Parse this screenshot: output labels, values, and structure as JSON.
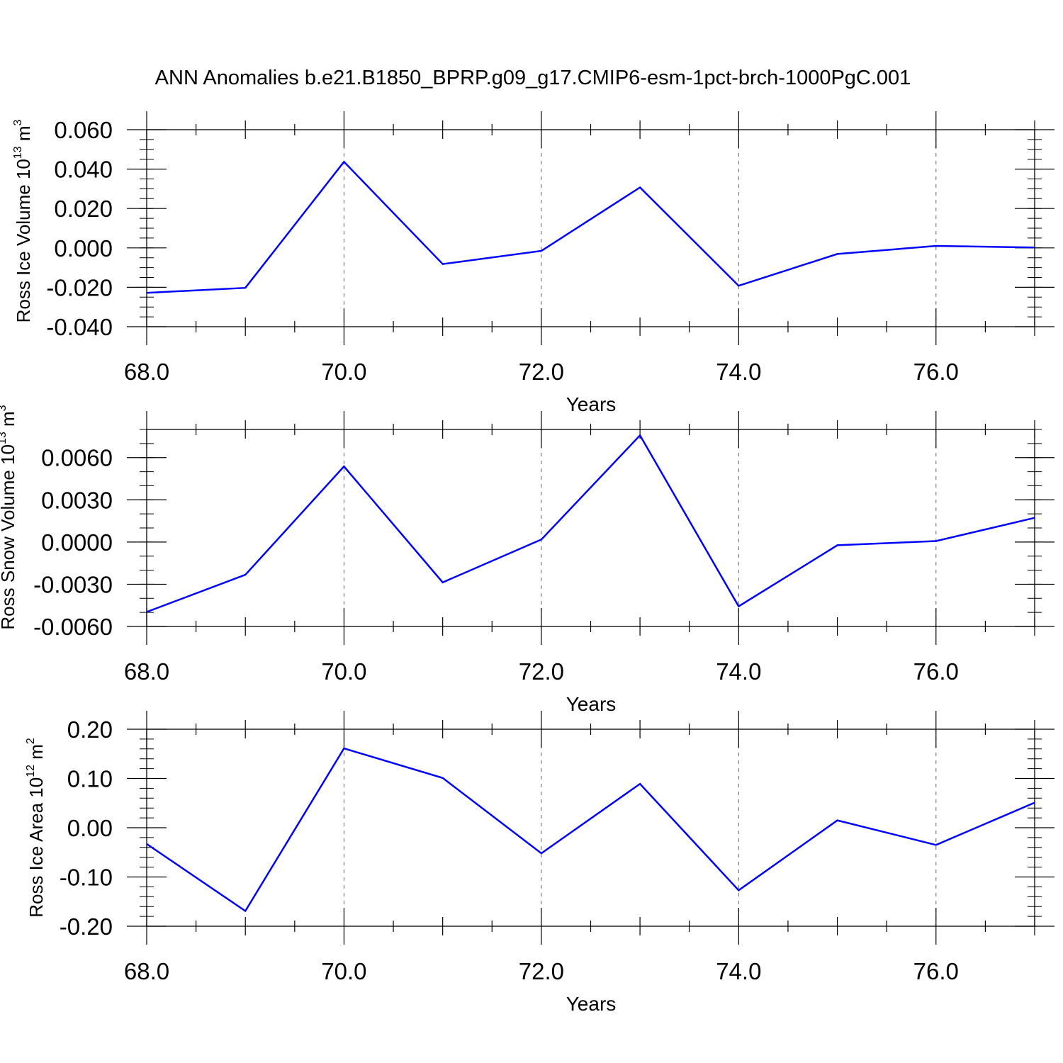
{
  "title": "ANN Anomalies b.e21.B1850_BPRP.g09_g17.CMIP6-esm-1pct-brch-1000PgC.001",
  "colors": {
    "line": "#0000ff",
    "axis": "#000000",
    "grid": "#666666"
  },
  "chart_data": [
    {
      "type": "line",
      "ylabel_main": "Ross Ice Volume 10",
      "ylabel_exp": "13",
      "ylabel_unit": " m",
      "ylabel_unit_exp": "3",
      "xlabel": "Years",
      "xlim": [
        68,
        77
      ],
      "ylim": [
        -0.04,
        0.06
      ],
      "xticks": [
        68,
        70,
        72,
        74,
        76
      ],
      "xtick_labels": [
        "68.0",
        "70.0",
        "72.0",
        "74.0",
        "76.0"
      ],
      "yticks": [
        0.06,
        0.04,
        0.02,
        0.0,
        -0.02,
        -0.04
      ],
      "ytick_labels": [
        "0.060",
        "0.040",
        "0.020",
        "0.000",
        "-0.020",
        "-0.040"
      ],
      "ytick_minor_step": 0.005,
      "grid": "vertical dashed at major x ticks",
      "series": [
        {
          "x": [
            68,
            69,
            70,
            71,
            72,
            73,
            74,
            75,
            76,
            77
          ],
          "y": [
            -0.0228,
            -0.0203,
            0.0437,
            -0.0082,
            -0.0015,
            0.0307,
            -0.0192,
            -0.0031,
            0.001,
            0.0002
          ]
        }
      ]
    },
    {
      "type": "line",
      "ylabel_main": "Ross Snow Volume 10",
      "ylabel_exp": "13",
      "ylabel_unit": " m",
      "ylabel_unit_exp": "3",
      "xlabel": "Years",
      "xlim": [
        68,
        77
      ],
      "ylim": [
        -0.006,
        0.008
      ],
      "xticks": [
        68,
        70,
        72,
        74,
        76
      ],
      "xtick_labels": [
        "68.0",
        "70.0",
        "72.0",
        "74.0",
        "76.0"
      ],
      "yticks": [
        0.006,
        0.003,
        0.0,
        -0.003,
        -0.006
      ],
      "ytick_labels": [
        "0.0060",
        "0.0030",
        "0.0000",
        "-0.0030",
        "-0.0060"
      ],
      "ytick_minor_step": 0.001,
      "grid": "vertical dashed at major x ticks",
      "series": [
        {
          "x": [
            68,
            69,
            70,
            71,
            72,
            73,
            74,
            75,
            76,
            77
          ],
          "y": [
            -0.00497,
            -0.00233,
            0.00537,
            -0.00287,
            0.00018,
            0.00758,
            -0.00457,
            -0.00023,
            7e-05,
            0.00172
          ]
        }
      ]
    },
    {
      "type": "line",
      "ylabel_main": "Ross Ice Area 10",
      "ylabel_exp": "12",
      "ylabel_unit": " m",
      "ylabel_unit_exp": "2",
      "xlabel": "Years",
      "xlim": [
        68,
        77
      ],
      "ylim": [
        -0.2,
        0.2
      ],
      "xticks": [
        68,
        70,
        72,
        74,
        76
      ],
      "xtick_labels": [
        "68.0",
        "70.0",
        "72.0",
        "74.0",
        "76.0"
      ],
      "yticks": [
        0.2,
        0.1,
        0.0,
        -0.1,
        -0.2
      ],
      "ytick_labels": [
        "0.20",
        "0.10",
        "0.00",
        "-0.10",
        "-0.20"
      ],
      "ytick_minor_step": 0.02,
      "grid": "vertical dashed at major x ticks",
      "series": [
        {
          "x": [
            68,
            69,
            70,
            71,
            72,
            73,
            74,
            75,
            76,
            77
          ],
          "y": [
            -0.033,
            -0.169,
            0.161,
            0.101,
            -0.052,
            0.089,
            -0.127,
            0.015,
            -0.035,
            0.051
          ]
        }
      ]
    }
  ]
}
